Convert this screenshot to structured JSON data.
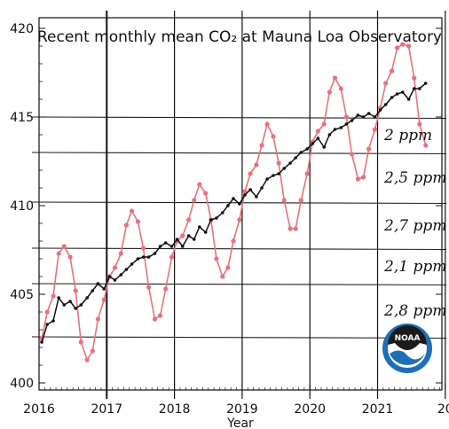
{
  "chart_data": {
    "type": "line",
    "title": "Recent monthly mean CO₂ at Mauna Loa Observatory",
    "xlabel": "Year",
    "ylabel": "",
    "xlim": [
      2016.0,
      2021.95
    ],
    "ylim": [
      399.6,
      420.6
    ],
    "x_ticks": [
      "2016",
      "2017",
      "2018",
      "2019",
      "2020",
      "2021",
      "20"
    ],
    "y_ticks": [
      "400",
      "405",
      "410",
      "415",
      "420"
    ],
    "grid": false,
    "legend": "none",
    "colors": {
      "monthly": "#e8717d",
      "trend": "#111111",
      "ruled_lines": "#222222"
    },
    "x": [
      2016.04,
      2016.12,
      2016.21,
      2016.29,
      2016.37,
      2016.46,
      2016.54,
      2016.62,
      2016.71,
      2016.79,
      2016.87,
      2016.96,
      2017.04,
      2017.12,
      2017.21,
      2017.29,
      2017.37,
      2017.46,
      2017.54,
      2017.62,
      2017.71,
      2017.79,
      2017.87,
      2017.96,
      2018.04,
      2018.12,
      2018.21,
      2018.29,
      2018.37,
      2018.46,
      2018.54,
      2018.62,
      2018.71,
      2018.79,
      2018.87,
      2018.96,
      2019.04,
      2019.12,
      2019.21,
      2019.29,
      2019.37,
      2019.46,
      2019.54,
      2019.62,
      2019.71,
      2019.79,
      2019.87,
      2019.96,
      2020.04,
      2020.12,
      2020.21,
      2020.29,
      2020.37,
      2020.46,
      2020.54,
      2020.62,
      2020.71,
      2020.79,
      2020.87,
      2020.96,
      2021.04,
      2021.12,
      2021.21,
      2021.29,
      2021.37,
      2021.46,
      2021.54,
      2021.62,
      2021.71
    ],
    "series": [
      {
        "values": [
          402.5,
          404.0,
          404.9,
          407.3,
          407.7,
          407.1,
          405.2,
          402.3,
          401.3,
          401.8,
          403.6,
          404.7,
          406.0,
          406.5,
          407.3,
          408.9,
          409.7,
          409.1,
          407.6,
          405.4,
          403.6,
          403.8,
          405.3,
          407.1,
          408.0,
          408.3,
          409.2,
          410.3,
          411.2,
          410.7,
          409.2,
          407.0,
          406.0,
          406.5,
          408.0,
          409.2,
          410.8,
          411.8,
          412.3,
          413.4,
          414.6,
          413.9,
          412.4,
          410.3,
          408.7,
          408.7,
          410.3,
          411.8,
          413.6,
          414.2,
          414.6,
          416.4,
          417.2,
          416.6,
          415.0,
          412.9,
          411.5,
          411.6,
          413.2,
          414.3,
          415.5,
          416.9,
          417.6,
          418.9,
          419.1,
          419.0,
          417.2,
          414.6,
          413.4
        ]
      },
      {
        "values": [
          402.3,
          403.3,
          403.5,
          404.8,
          404.4,
          404.6,
          404.2,
          404.4,
          404.8,
          405.2,
          405.6,
          405.3,
          406.0,
          405.8,
          406.1,
          406.4,
          406.7,
          407.0,
          407.1,
          407.1,
          407.3,
          407.7,
          407.9,
          407.7,
          408.1,
          407.7,
          408.3,
          408.1,
          408.8,
          408.5,
          409.2,
          409.3,
          409.6,
          410.0,
          410.4,
          410.1,
          410.6,
          410.9,
          410.5,
          411.0,
          411.5,
          411.7,
          411.8,
          412.1,
          412.4,
          412.7,
          413.0,
          413.2,
          413.5,
          413.8,
          413.3,
          414.0,
          414.3,
          414.4,
          414.6,
          414.8,
          415.1,
          415.0,
          415.2,
          415.0,
          415.4,
          415.7,
          416.1,
          416.3,
          416.4,
          416.0,
          416.6,
          416.6,
          416.9
        ]
      }
    ],
    "annotations": [
      "2 ppm",
      "2,5 ppm",
      "2,7 ppm",
      "2,1 ppm",
      "2,8 ppm"
    ],
    "annotation_rows": [
      415,
      413,
      410.2,
      407.6,
      405.6,
      402.6
    ]
  },
  "logo": {
    "label": "NOAA",
    "colors": {
      "ring": "#1d6fb8",
      "dark": "#1b1b1b",
      "light": "#ffffff"
    }
  }
}
